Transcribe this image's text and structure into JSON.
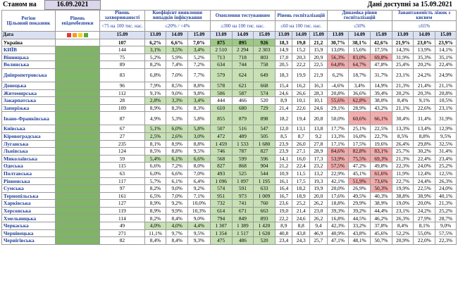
{
  "header": {
    "as_of_label": "Станом на",
    "as_of_date": "16.09.2021",
    "available": "Дані доступні за 15.09.2021"
  },
  "colors": {
    "red": "#e03a2f",
    "orange": "#f39a2c",
    "yellow": "#f6d21c",
    "green": "#5aa83c",
    "level_fill": "#80b466",
    "light_green": "#c7e1b4",
    "pink": "#f2aeae"
  },
  "columns": {
    "region": "Регіон",
    "indicator": "Цільовий показник",
    "date": "Дата",
    "level": "Рівень епідембезпеки",
    "incidence": "Рівень захворюваності",
    "incidence_sub": "<75 на 100 тис. нас.",
    "detection": "Коефіцієнт виявлення випадків інфікування",
    "detection_sub": "≤20% / <4%",
    "testing": "Охоплення тестуванням",
    "testing_sub": "≥300 на 100 тис. нас.",
    "hosp": "Рівень госпіталізацій",
    "hosp_sub": "≤60 на 100 тис. нас.",
    "dyn": "Динаміка рівня госпіталізацій",
    "dyn_sub": "≤50%",
    "oxy": "Завантаженість ліжок з киснем",
    "oxy_sub": "≤65%",
    "dates": [
      "15.09",
      "13.09",
      "14.09",
      "15.09",
      "13.09",
      "14.09",
      "15.09",
      "13.09",
      "14.09",
      "15.09",
      "13.09",
      "14.09",
      "15.09",
      "13.09",
      "14.09",
      "15.09"
    ]
  },
  "rows": [
    {
      "name": "Україна",
      "v": [
        "107",
        "6,2%",
        "6,6%",
        "7,0%",
        "875",
        "895",
        "926",
        "18,3",
        "19,8",
        "21,2",
        "30,7%",
        "38,1%",
        "42,6%",
        "21,9%",
        "23,0%",
        "23,9%"
      ]
    },
    {
      "name": "КИЇВ",
      "v": [
        "144",
        "3,1%",
        "3,5%",
        "3,4%",
        "2 510",
        "2 294",
        "2 303",
        "14,9",
        "15,2",
        "15,9",
        "13,0%",
        "15,6%",
        "17,5%",
        "14,3%",
        "13,9%",
        "14,1%"
      ]
    },
    {
      "name": "Вінницька",
      "v": [
        "75",
        "5,2%",
        "5,9%",
        "5,2%",
        "713",
        "718",
        "803",
        "17,0",
        "20,3",
        "20,9",
        "56,3%",
        "83,0%",
        "69,8%",
        "31,9%",
        "35,3%",
        "35,1%"
      ]
    },
    {
      "name": "Волинська",
      "v": [
        "89",
        "8,2%",
        "7,4%",
        "7,2%",
        "634",
        "744",
        "758",
        "20,5",
        "22,2",
        "22,5",
        "64,8%",
        "64,7%",
        "47,8%",
        "25,4%",
        "20,2%",
        "22,4%"
      ]
    },
    {
      "name": "Дніпропетровська",
      "v": [
        "83",
        "6,8%",
        "7,0%",
        "7,7%",
        "579",
        "624",
        "649",
        "18,3",
        "19,9",
        "21,9",
        "6,2%",
        "18,7%",
        "31,7%",
        "23,1%",
        "24,2%",
        "24,9%"
      ]
    },
    {
      "name": "Донецька",
      "v": [
        "96",
        "7,9%",
        "8,5%",
        "8,8%",
        "578",
        "621",
        "668",
        "15,4",
        "16,2",
        "16,3",
        "-4,6%",
        "3,4%",
        "14,9%",
        "21,3%",
        "21,4%",
        "21,1%"
      ]
    },
    {
      "name": "Житомирська",
      "v": [
        "112",
        "9,1%",
        "9,0%",
        "9,8%",
        "506",
        "587",
        "574",
        "24,6",
        "26,6",
        "28,3",
        "20,8%",
        "36,6%",
        "39,4%",
        "20,2%",
        "20,3%",
        "20,8%"
      ]
    },
    {
      "name": "Закарпатська",
      "v": [
        "28",
        "2,8%",
        "3,3%",
        "3,4%",
        "444",
        "466",
        "520",
        "8,9",
        "10,1",
        "10,1",
        "55,6%",
        "62,8%",
        "38,0%",
        "8,4%",
        "9,1%",
        "10,5%"
      ]
    },
    {
      "name": "Запорізька",
      "v": [
        "109",
        "8,9%",
        "8,3%",
        "8,3%",
        "610",
        "680",
        "729",
        "21,4",
        "22,6",
        "24,6",
        "29,1%",
        "28,9%",
        "43,2%",
        "21,1%",
        "22,6%",
        "23,1%"
      ]
    },
    {
      "name": "Івано-Франківська",
      "v": [
        "87",
        "4,9%",
        "5,3%",
        "5,8%",
        "855",
        "879",
        "898",
        "18,2",
        "19,4",
        "20,8",
        "50,0%",
        "60,6%",
        "66,1%",
        "30,4%",
        "31,4%",
        "31,9%"
      ]
    },
    {
      "name": "Київська",
      "v": [
        "67",
        "5,1%",
        "6,0%",
        "5,8%",
        "507",
        "516",
        "547",
        "12,0",
        "13,1",
        "13,8",
        "17,7%",
        "25,1%",
        "22,5%",
        "13,3%",
        "13,4%",
        "12,9%"
      ]
    },
    {
      "name": "Кіровоградська",
      "v": [
        "27",
        "2,5%",
        "2,6%",
        "3,0%",
        "472",
        "489",
        "505",
        "8,5",
        "8,7",
        "9,2",
        "13,3%",
        "16,0%",
        "22,7%",
        "8,5%",
        "8,8%",
        "9,5%"
      ]
    },
    {
      "name": "Луганська",
      "v": [
        "235",
        "8,1%",
        "8,9%",
        "8,8%",
        "1 459",
        "1 533",
        "1 680",
        "23,9",
        "26,0",
        "27,8",
        "17,1%",
        "17,5%",
        "19,6%",
        "26,4%",
        "29,8%",
        "32,5%"
      ]
    },
    {
      "name": "Львівська",
      "v": [
        "124",
        "8,5%",
        "8,8%",
        "9,5%",
        "746",
        "787",
        "827",
        "23,9",
        "27,1",
        "28,9",
        "84,6%",
        "82,8%",
        "83,1%",
        "25,7%",
        "30,2%",
        "31,4%"
      ]
    },
    {
      "name": "Миколаївська",
      "v": [
        "59",
        "5,4%",
        "6,1%",
        "6,6%",
        "568",
        "599",
        "596",
        "14,1",
        "16,0",
        "17,3",
        "53,9%",
        "75,5%",
        "69,3%",
        "21,3%",
        "22,4%",
        "23,4%"
      ]
    },
    {
      "name": "Одеська",
      "v": [
        "115",
        "6,6%",
        "7,2%",
        "8,0%",
        "827",
        "868",
        "904",
        "21,2",
        "22,4",
        "23,2",
        "57,5%",
        "47,2%",
        "49,8%",
        "22,3%",
        "24,0%",
        "25,2%"
      ]
    },
    {
      "name": "Полтавська",
      "v": [
        "63",
        "6,0%",
        "6,6%",
        "7,0%",
        "493",
        "525",
        "544",
        "10,9",
        "11,5",
        "13,2",
        "22,9%",
        "45,1%",
        "61,6%",
        "11,9%",
        "12,4%",
        "12,5%"
      ]
    },
    {
      "name": "Рівненська",
      "v": [
        "117",
        "5,7%",
        "6,1%",
        "6,4%",
        "1 096",
        "1 097",
        "1 195",
        "16,1",
        "17,5",
        "19,3",
        "42,1%",
        "51,9%",
        "73,6%",
        "22,7%",
        "24,4%",
        "26,3%"
      ]
    },
    {
      "name": "Сумська",
      "v": [
        "97",
        "8,2%",
        "9,0%",
        "9,2%",
        "574",
        "591",
        "633",
        "16,4",
        "18,2",
        "19,9",
        "20,0%",
        "26,9%",
        "50,3%",
        "19,9%",
        "22,5%",
        "24,0%"
      ]
    },
    {
      "name": "Тернопільська",
      "v": [
        "161",
        "6,5%",
        "7,0%",
        "7,1%",
        "951",
        "973",
        "1 009",
        "16,7",
        "18,9",
        "20,0",
        "17,6%",
        "49,5%",
        "40,3%",
        "38,8%",
        "38,9%",
        "40,1%"
      ]
    },
    {
      "name": "Харківська",
      "v": [
        "127",
        "8,9%",
        "9,2%",
        "10,0%",
        "732",
        "741",
        "760",
        "23,6",
        "25,2",
        "26,2",
        "18,8%",
        "29,9%",
        "38,9%",
        "19,0%",
        "20,0%",
        "21,3%"
      ]
    },
    {
      "name": "Херсонська",
      "v": [
        "119",
        "8,9%",
        "9,9%",
        "10,3%",
        "614",
        "671",
        "663",
        "19,0",
        "21,4",
        "23,0",
        "39,3%",
        "39,2%",
        "44,4%",
        "23,1%",
        "24,2%",
        "25,2%"
      ]
    },
    {
      "name": "Хмельницька",
      "v": [
        "114",
        "8,2%",
        "8,4%",
        "9,0%",
        "794",
        "849",
        "893",
        "22,2",
        "24,6",
        "26,2",
        "16,8%",
        "44,5%",
        "46,2%",
        "26,3%",
        "27,9%",
        "28,7%"
      ]
    },
    {
      "name": "Черкаська",
      "v": [
        "49",
        "4,0%",
        "4,0%",
        "4,4%",
        "1 307",
        "1 389",
        "1 420",
        "8,9",
        "8,8",
        "9,4",
        "42,3%",
        "33,2%",
        "37,8%",
        "8,4%",
        "8,1%",
        "9,0%"
      ]
    },
    {
      "name": "Чернівецька",
      "v": [
        "271",
        "11,1%",
        "9,7%",
        "9,5%",
        "1 354",
        "1 517",
        "1 628",
        "40,8",
        "43,8",
        "46,9",
        "40,9%",
        "43,8%",
        "45,6%",
        "52,2%",
        "55,0%",
        "57,5%"
      ]
    },
    {
      "name": "Чернігівська",
      "v": [
        "82",
        "8,4%",
        "8,4%",
        "9,3%",
        "475",
        "486",
        "520",
        "23,4",
        "24,3",
        "25,7",
        "47,1%",
        "48,1%",
        "50,7%",
        "20,9%",
        "22,0%",
        "22,3%"
      ]
    }
  ]
}
